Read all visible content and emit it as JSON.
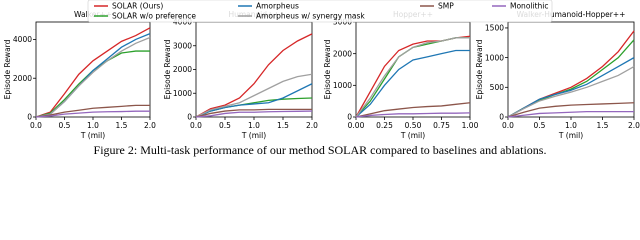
{
  "legend": [
    {
      "name": "SOLAR (Ours)",
      "color": "#d62728"
    },
    {
      "name": "SOLAR w/o preference",
      "color": "#2ca02c"
    },
    {
      "name": "Amorpheus",
      "color": "#1f77b4"
    },
    {
      "name": "Amorpheus w/ synergy mask",
      "color": "#a0a0a0"
    },
    {
      "name": "SMP",
      "color": "#8c564b"
    },
    {
      "name": "Monolithic",
      "color": "#9467bd"
    }
  ],
  "chart_data": [
    {
      "type": "line",
      "title": "Walker++",
      "xlabel": "T (mil)",
      "ylabel": "Episode Reward",
      "x": [
        0,
        0.25,
        0.5,
        0.75,
        1.0,
        1.25,
        1.5,
        1.75,
        2.0
      ],
      "series": [
        {
          "values": [
            0,
            250,
            1200,
            2200,
            2900,
            3400,
            3900,
            4200,
            4600
          ]
        },
        {
          "values": [
            0,
            200,
            900,
            1700,
            2400,
            2900,
            3300,
            3400,
            3400
          ]
        },
        {
          "values": [
            0,
            150,
            800,
            1600,
            2400,
            3000,
            3600,
            4000,
            4300
          ]
        },
        {
          "values": [
            0,
            150,
            800,
            1600,
            2300,
            2900,
            3400,
            3800,
            4100
          ]
        },
        {
          "values": [
            0,
            100,
            250,
            350,
            450,
            500,
            550,
            600,
            600
          ]
        },
        {
          "values": [
            0,
            50,
            150,
            200,
            250,
            270,
            280,
            300,
            300
          ]
        }
      ],
      "xlim": [
        0,
        2
      ],
      "ylim": [
        0,
        4900
      ],
      "xticks": [
        {
          "value": 0,
          "label": "0.0"
        },
        {
          "value": 0.5,
          "label": "0.5"
        },
        {
          "value": 1,
          "label": "1.0"
        },
        {
          "value": 1.5,
          "label": "1.5"
        },
        {
          "value": 2,
          "label": "2.0"
        }
      ],
      "yticks": [
        0,
        2000,
        4000
      ]
    },
    {
      "type": "line",
      "title": "Humanoid++",
      "xlabel": "T (mil)",
      "ylabel": "Episode Reward",
      "x": [
        0,
        0.25,
        0.5,
        0.75,
        1.0,
        1.25,
        1.5,
        1.75,
        2.0
      ],
      "series": [
        {
          "values": [
            0,
            350,
            500,
            800,
            1400,
            2200,
            2800,
            3200,
            3500
          ]
        },
        {
          "values": [
            0,
            250,
            400,
            500,
            600,
            700,
            750,
            780,
            800
          ]
        },
        {
          "values": [
            0,
            250,
            400,
            500,
            550,
            600,
            800,
            1100,
            1400
          ]
        },
        {
          "values": [
            0,
            300,
            450,
            600,
            900,
            1200,
            1500,
            1700,
            1800
          ]
        },
        {
          "values": [
            0,
            150,
            250,
            300,
            300,
            320,
            320,
            320,
            320
          ]
        },
        {
          "values": [
            0,
            50,
            150,
            200,
            200,
            220,
            230,
            240,
            250
          ]
        }
      ],
      "xlim": [
        0,
        2
      ],
      "ylim": [
        0,
        4000
      ],
      "xticks": [
        {
          "value": 0,
          "label": "0.0"
        },
        {
          "value": 0.5,
          "label": "0.5"
        },
        {
          "value": 1,
          "label": "1.0"
        },
        {
          "value": 1.5,
          "label": "1.5"
        },
        {
          "value": 2,
          "label": "2.0"
        }
      ],
      "yticks": [
        0,
        1000,
        2000,
        3000,
        4000
      ]
    },
    {
      "type": "line",
      "title": "Hopper++",
      "xlabel": "T (mil)",
      "ylabel": "Episode Reward",
      "x": [
        0,
        0.125,
        0.25,
        0.375,
        0.5,
        0.625,
        0.75,
        0.875,
        1.0
      ],
      "series": [
        {
          "values": [
            0,
            800,
            1600,
            2100,
            2300,
            2400,
            2400,
            2500,
            2550
          ]
        },
        {
          "values": [
            0,
            500,
            1200,
            1900,
            2200,
            2300,
            2400,
            2500,
            2500
          ]
        },
        {
          "values": [
            0,
            400,
            1000,
            1500,
            1800,
            1900,
            2000,
            2100,
            2100
          ]
        },
        {
          "values": [
            0,
            600,
            1300,
            1900,
            2200,
            2350,
            2400,
            2500,
            2500
          ]
        },
        {
          "values": [
            0,
            100,
            200,
            250,
            300,
            330,
            350,
            400,
            450
          ]
        },
        {
          "values": [
            0,
            50,
            80,
            100,
            100,
            110,
            120,
            120,
            130
          ]
        }
      ],
      "xlim": [
        0,
        1
      ],
      "ylim": [
        0,
        3000
      ],
      "xticks": [
        {
          "value": 0,
          "label": "0.00"
        },
        {
          "value": 0.25,
          "label": "0.25"
        },
        {
          "value": 0.5,
          "label": "0.50"
        },
        {
          "value": 0.75,
          "label": "0.75"
        },
        {
          "value": 1,
          "label": "1.00"
        }
      ],
      "yticks": [
        0,
        1000,
        2000,
        3000
      ]
    },
    {
      "type": "line",
      "title": "Walker-Humanoid-Hopper++",
      "xlabel": "T (mil)",
      "ylabel": "Episode Reward",
      "x": [
        0,
        0.25,
        0.5,
        0.75,
        1.0,
        1.25,
        1.5,
        1.75,
        2.0
      ],
      "series": [
        {
          "values": [
            0,
            150,
            300,
            400,
            500,
            650,
            850,
            1100,
            1450
          ]
        },
        {
          "values": [
            0,
            150,
            280,
            380,
            470,
            600,
            800,
            1000,
            1300
          ]
        },
        {
          "values": [
            0,
            150,
            300,
            380,
            450,
            550,
            700,
            850,
            1000
          ]
        },
        {
          "values": [
            0,
            140,
            270,
            350,
            420,
            500,
            600,
            700,
            850
          ]
        },
        {
          "values": [
            0,
            80,
            150,
            180,
            200,
            210,
            220,
            230,
            240
          ]
        },
        {
          "values": [
            0,
            30,
            60,
            70,
            80,
            90,
            90,
            90,
            90
          ]
        }
      ],
      "xlim": [
        0,
        2
      ],
      "ylim": [
        0,
        1600
      ],
      "xticks": [
        {
          "value": 0,
          "label": "0.0"
        },
        {
          "value": 0.5,
          "label": "0.5"
        },
        {
          "value": 1,
          "label": "1.0"
        },
        {
          "value": 1.5,
          "label": "1.5"
        },
        {
          "value": 2,
          "label": "2.0"
        }
      ],
      "yticks": [
        0,
        500,
        1000,
        1500
      ]
    }
  ],
  "caption": "Figure 2: Multi-task performance of our method SOLAR compared to baselines and ablations."
}
